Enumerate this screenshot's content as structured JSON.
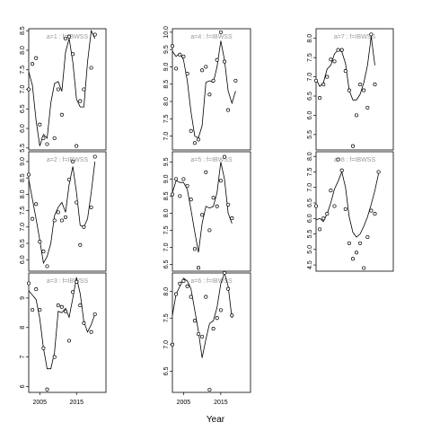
{
  "chart_data": {
    "type": "scatter",
    "xlabel": "Year",
    "x_ticks": [
      2005,
      2015
    ],
    "panels": [
      {
        "label": "a=1 : f=IBWSS",
        "xlim": [
          2002,
          2023
        ],
        "ylim": [
          5.45,
          8.55
        ],
        "yticks": [
          5.5,
          6.0,
          6.5,
          7.0,
          7.5,
          8.0,
          8.5
        ],
        "x_axis": false,
        "points": [
          [
            2002,
            7.0
          ],
          [
            2003,
            7.65
          ],
          [
            2004,
            7.8
          ],
          [
            2005,
            6.1
          ],
          [
            2006,
            5.75
          ],
          [
            2007,
            5.6
          ],
          [
            2009,
            5.75
          ],
          [
            2010,
            7.0
          ],
          [
            2011,
            6.35
          ],
          [
            2012,
            8.3
          ],
          [
            2013,
            8.35
          ],
          [
            2014,
            7.9
          ],
          [
            2015,
            5.55
          ],
          [
            2016,
            6.7
          ],
          [
            2017,
            7.0
          ],
          [
            2019,
            7.55
          ],
          [
            2020,
            8.4
          ]
        ],
        "curve": [
          [
            2002,
            7.45
          ],
          [
            2003,
            7.1
          ],
          [
            2004,
            6.2
          ],
          [
            2005,
            5.55
          ],
          [
            2006,
            5.85
          ],
          [
            2007,
            5.75
          ],
          [
            2008,
            6.65
          ],
          [
            2009,
            7.15
          ],
          [
            2010,
            7.2
          ],
          [
            2011,
            6.95
          ],
          [
            2012,
            7.95
          ],
          [
            2013,
            8.3
          ],
          [
            2014,
            7.7
          ],
          [
            2015,
            6.75
          ],
          [
            2016,
            6.55
          ],
          [
            2017,
            6.55
          ],
          [
            2018,
            7.7
          ],
          [
            2019,
            8.5
          ],
          [
            2020,
            8.3
          ]
        ]
      },
      {
        "label": "a=2 : f=IBWSS",
        "xlim": [
          2002,
          2023
        ],
        "ylim": [
          5.65,
          9.3
        ],
        "yticks": [
          6.0,
          6.5,
          7.0,
          7.5,
          8.0,
          8.5,
          9.0
        ],
        "x_axis": false,
        "points": [
          [
            2002,
            8.6
          ],
          [
            2003,
            7.25
          ],
          [
            2004,
            7.7
          ],
          [
            2005,
            6.55
          ],
          [
            2006,
            6.25
          ],
          [
            2007,
            5.8
          ],
          [
            2009,
            7.2
          ],
          [
            2010,
            7.45
          ],
          [
            2011,
            7.2
          ],
          [
            2012,
            7.3
          ],
          [
            2013,
            8.45
          ],
          [
            2014,
            9.0
          ],
          [
            2015,
            7.75
          ],
          [
            2016,
            6.45
          ],
          [
            2017,
            7.0
          ],
          [
            2019,
            7.6
          ],
          [
            2020,
            9.15
          ]
        ],
        "curve": [
          [
            2002,
            8.45
          ],
          [
            2003,
            7.85
          ],
          [
            2004,
            7.25
          ],
          [
            2005,
            6.6
          ],
          [
            2006,
            5.9
          ],
          [
            2007,
            6.1
          ],
          [
            2008,
            6.5
          ],
          [
            2009,
            7.35
          ],
          [
            2010,
            7.6
          ],
          [
            2011,
            7.75
          ],
          [
            2012,
            7.45
          ],
          [
            2013,
            8.3
          ],
          [
            2014,
            8.85
          ],
          [
            2015,
            8.05
          ],
          [
            2016,
            7.05
          ],
          [
            2017,
            7.0
          ],
          [
            2018,
            7.25
          ],
          [
            2019,
            8.05
          ],
          [
            2020,
            9.0
          ]
        ]
      },
      {
        "label": "a=3 : f=IBWSS",
        "xlim": [
          2002,
          2023
        ],
        "ylim": [
          5.8,
          9.85
        ],
        "yticks": [
          6,
          7,
          8,
          9
        ],
        "x_axis": true,
        "points": [
          [
            2002,
            9.5
          ],
          [
            2003,
            8.6
          ],
          [
            2004,
            9.3
          ],
          [
            2005,
            8.6
          ],
          [
            2006,
            7.3
          ],
          [
            2007,
            5.9
          ],
          [
            2009,
            7.0
          ],
          [
            2010,
            8.75
          ],
          [
            2011,
            8.7
          ],
          [
            2012,
            8.55
          ],
          [
            2013,
            7.55
          ],
          [
            2014,
            9.2
          ],
          [
            2015,
            9.55
          ],
          [
            2016,
            8.75
          ],
          [
            2017,
            8.15
          ],
          [
            2019,
            7.85
          ],
          [
            2020,
            8.45
          ]
        ],
        "curve": [
          [
            2002,
            9.25
          ],
          [
            2003,
            9.1
          ],
          [
            2004,
            8.95
          ],
          [
            2005,
            8.3
          ],
          [
            2006,
            7.3
          ],
          [
            2007,
            6.6
          ],
          [
            2008,
            6.6
          ],
          [
            2009,
            7.15
          ],
          [
            2010,
            8.55
          ],
          [
            2011,
            8.5
          ],
          [
            2012,
            8.65
          ],
          [
            2013,
            8.35
          ],
          [
            2014,
            9.0
          ],
          [
            2015,
            9.7
          ],
          [
            2016,
            9.15
          ],
          [
            2017,
            8.2
          ],
          [
            2018,
            7.85
          ],
          [
            2019,
            8.1
          ],
          [
            2020,
            8.45
          ]
        ]
      },
      {
        "label": "a=4 : f=IBWSS",
        "xlim": [
          2002,
          2023
        ],
        "ylim": [
          6.6,
          10.1
        ],
        "yticks": [
          7.0,
          7.5,
          8.0,
          8.5,
          9.0,
          9.5,
          10.0
        ],
        "x_axis": false,
        "points": [
          [
            2002,
            9.6
          ],
          [
            2003,
            8.95
          ],
          [
            2004,
            9.35
          ],
          [
            2005,
            9.3
          ],
          [
            2006,
            8.8
          ],
          [
            2007,
            7.15
          ],
          [
            2008,
            6.8
          ],
          [
            2009,
            6.9
          ],
          [
            2010,
            8.9
          ],
          [
            2011,
            9.0
          ],
          [
            2012,
            8.2
          ],
          [
            2013,
            8.6
          ],
          [
            2014,
            9.2
          ],
          [
            2015,
            10.0
          ],
          [
            2016,
            9.15
          ],
          [
            2017,
            7.75
          ],
          [
            2019,
            8.6
          ]
        ],
        "curve": [
          [
            2002,
            9.45
          ],
          [
            2003,
            9.3
          ],
          [
            2004,
            9.4
          ],
          [
            2005,
            9.2
          ],
          [
            2006,
            8.6
          ],
          [
            2007,
            7.7
          ],
          [
            2008,
            7.0
          ],
          [
            2009,
            6.95
          ],
          [
            2010,
            7.3
          ],
          [
            2011,
            8.55
          ],
          [
            2012,
            8.6
          ],
          [
            2013,
            8.55
          ],
          [
            2014,
            9.0
          ],
          [
            2015,
            9.75
          ],
          [
            2016,
            9.2
          ],
          [
            2017,
            8.3
          ],
          [
            2018,
            7.95
          ],
          [
            2019,
            8.3
          ]
        ]
      },
      {
        "label": "a=5 : f=IBWSS",
        "xlim": [
          2002,
          2023
        ],
        "ylim": [
          6.3,
          9.8
        ],
        "yticks": [
          6.5,
          7.0,
          7.5,
          8.0,
          8.5,
          9.0,
          9.5
        ],
        "x_axis": false,
        "points": [
          [
            2002,
            8.55
          ],
          [
            2003,
            9.0
          ],
          [
            2004,
            8.5
          ],
          [
            2005,
            9.0
          ],
          [
            2006,
            8.8
          ],
          [
            2007,
            8.4
          ],
          [
            2008,
            6.95
          ],
          [
            2009,
            6.4
          ],
          [
            2010,
            7.95
          ],
          [
            2011,
            9.2
          ],
          [
            2012,
            7.5
          ],
          [
            2013,
            8.45
          ],
          [
            2014,
            8.2
          ],
          [
            2015,
            8.95
          ],
          [
            2016,
            9.65
          ],
          [
            2017,
            8.25
          ],
          [
            2018,
            7.85
          ]
        ],
        "curve": [
          [
            2002,
            8.6
          ],
          [
            2003,
            8.95
          ],
          [
            2004,
            8.9
          ],
          [
            2005,
            8.9
          ],
          [
            2006,
            8.7
          ],
          [
            2007,
            8.1
          ],
          [
            2008,
            7.45
          ],
          [
            2009,
            6.85
          ],
          [
            2010,
            7.7
          ],
          [
            2011,
            8.2
          ],
          [
            2012,
            8.15
          ],
          [
            2013,
            8.2
          ],
          [
            2014,
            8.6
          ],
          [
            2015,
            9.5
          ],
          [
            2016,
            9.0
          ],
          [
            2017,
            8.0
          ],
          [
            2018,
            7.7
          ]
        ]
      },
      {
        "label": "a=6 : f=IBWSS",
        "xlim": [
          2002,
          2023
        ],
        "ylim": [
          6.1,
          8.35
        ],
        "yticks": [
          6.5,
          7.0,
          7.5,
          8.0
        ],
        "x_axis": true,
        "points": [
          [
            2002,
            7.0
          ],
          [
            2003,
            7.95
          ],
          [
            2004,
            8.15
          ],
          [
            2005,
            8.2
          ],
          [
            2006,
            8.1
          ],
          [
            2007,
            7.9
          ],
          [
            2008,
            7.45
          ],
          [
            2009,
            7.2
          ],
          [
            2010,
            7.15
          ],
          [
            2011,
            7.9
          ],
          [
            2012,
            6.15
          ],
          [
            2013,
            7.3
          ],
          [
            2014,
            7.5
          ],
          [
            2015,
            7.65
          ],
          [
            2016,
            8.35
          ],
          [
            2017,
            8.05
          ],
          [
            2018,
            7.55
          ]
        ],
        "curve": [
          [
            2002,
            7.55
          ],
          [
            2003,
            7.95
          ],
          [
            2004,
            8.1
          ],
          [
            2005,
            8.25
          ],
          [
            2006,
            8.2
          ],
          [
            2007,
            8.05
          ],
          [
            2008,
            7.65
          ],
          [
            2009,
            7.25
          ],
          [
            2010,
            6.75
          ],
          [
            2011,
            7.1
          ],
          [
            2012,
            7.4
          ],
          [
            2013,
            7.45
          ],
          [
            2014,
            7.7
          ],
          [
            2015,
            8.15
          ],
          [
            2016,
            8.35
          ],
          [
            2017,
            8.1
          ],
          [
            2018,
            7.5
          ]
        ]
      },
      {
        "label": "a=7 : f=IBWSS",
        "xlim": [
          2002,
          2023
        ],
        "ylim": [
          5.1,
          8.25
        ],
        "yticks": [
          5.5,
          6.0,
          6.5,
          7.0,
          7.5,
          8.0
        ],
        "x_axis": false,
        "points": [
          [
            2002,
            6.9
          ],
          [
            2003,
            6.45
          ],
          [
            2004,
            6.8
          ],
          [
            2005,
            7.0
          ],
          [
            2006,
            7.45
          ],
          [
            2007,
            7.4
          ],
          [
            2008,
            7.7
          ],
          [
            2009,
            7.7
          ],
          [
            2010,
            7.15
          ],
          [
            2011,
            6.65
          ],
          [
            2012,
            5.2
          ],
          [
            2013,
            6.0
          ],
          [
            2014,
            6.8
          ],
          [
            2015,
            6.65
          ],
          [
            2016,
            6.2
          ],
          [
            2017,
            8.1
          ],
          [
            2018,
            6.8
          ]
        ],
        "curve": [
          [
            2002,
            6.95
          ],
          [
            2003,
            6.75
          ],
          [
            2004,
            6.85
          ],
          [
            2005,
            7.2
          ],
          [
            2006,
            7.3
          ],
          [
            2007,
            7.6
          ],
          [
            2008,
            7.7
          ],
          [
            2009,
            7.65
          ],
          [
            2010,
            7.35
          ],
          [
            2011,
            6.65
          ],
          [
            2012,
            6.4
          ],
          [
            2013,
            6.4
          ],
          [
            2014,
            6.55
          ],
          [
            2015,
            6.85
          ],
          [
            2016,
            7.3
          ],
          [
            2017,
            8.05
          ],
          [
            2018,
            7.3
          ]
        ]
      },
      {
        "label": "a=8 : f=IBWSS",
        "xlim": [
          2002,
          2023
        ],
        "ylim": [
          4.3,
          8.15
        ],
        "yticks": [
          4.5,
          5.0,
          5.5,
          6.0,
          6.5,
          7.0,
          7.5,
          8.0
        ],
        "x_axis": false,
        "points": [
          [
            2002,
            6.4
          ],
          [
            2003,
            5.65
          ],
          [
            2004,
            6.0
          ],
          [
            2005,
            6.15
          ],
          [
            2006,
            6.9
          ],
          [
            2007,
            6.4
          ],
          [
            2008,
            7.9
          ],
          [
            2009,
            7.55
          ],
          [
            2010,
            6.3
          ],
          [
            2011,
            5.2
          ],
          [
            2012,
            4.7
          ],
          [
            2013,
            4.9
          ],
          [
            2014,
            5.2
          ],
          [
            2015,
            4.4
          ],
          [
            2016,
            5.4
          ],
          [
            2017,
            6.25
          ],
          [
            2018,
            6.15
          ],
          [
            2019,
            7.5
          ]
        ],
        "curve": [
          [
            2002,
            5.95
          ],
          [
            2003,
            6.0
          ],
          [
            2004,
            5.9
          ],
          [
            2005,
            6.15
          ],
          [
            2006,
            6.5
          ],
          [
            2007,
            6.95
          ],
          [
            2008,
            7.2
          ],
          [
            2009,
            7.5
          ],
          [
            2010,
            7.0
          ],
          [
            2011,
            6.05
          ],
          [
            2012,
            5.55
          ],
          [
            2013,
            5.4
          ],
          [
            2014,
            5.5
          ],
          [
            2015,
            5.75
          ],
          [
            2016,
            6.05
          ],
          [
            2017,
            6.45
          ],
          [
            2018,
            6.9
          ],
          [
            2019,
            7.45
          ]
        ]
      }
    ]
  }
}
